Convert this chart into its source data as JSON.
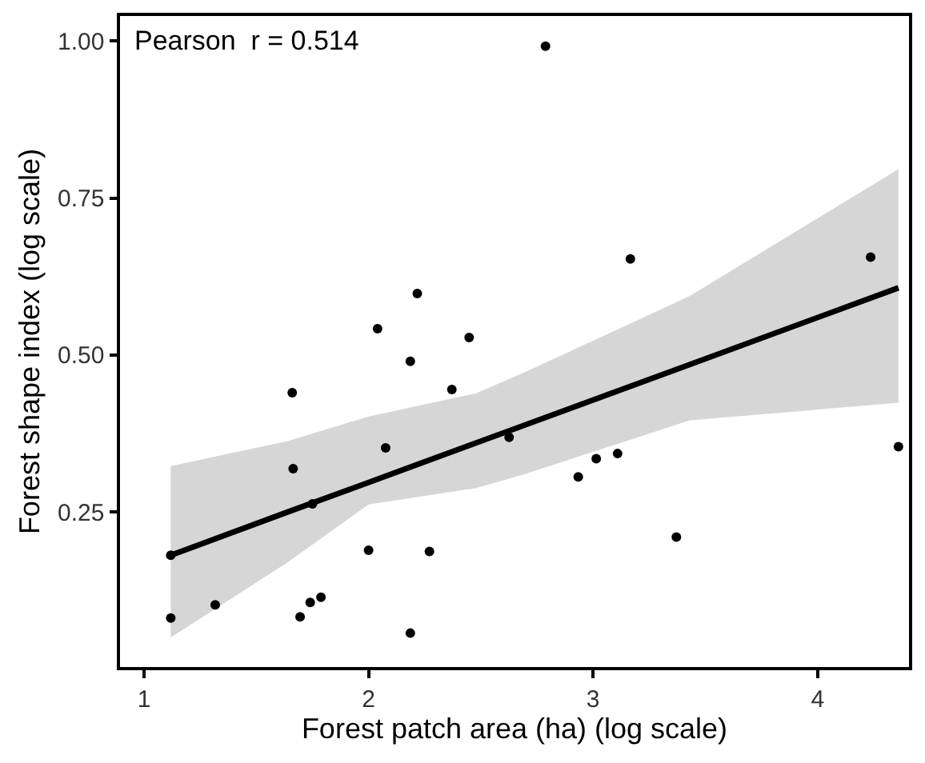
{
  "chart_data": {
    "type": "scatter",
    "xlabel": "Forest patch area (ha) (log scale)",
    "ylabel": "Forest shape index (log scale)",
    "annotations": [
      "Pearson  r = 0.514"
    ],
    "xlim": [
      0.893,
      4.407
    ],
    "ylim": [
      0.003,
      1.04
    ],
    "xticks": [
      1,
      2,
      3,
      4
    ],
    "yticks": [
      {
        "value": 0.25,
        "label": "0.25"
      },
      {
        "value": 0.5,
        "label": "0.50"
      },
      {
        "value": 0.75,
        "label": "0.75"
      },
      {
        "value": 1.0,
        "label": "1.00"
      }
    ],
    "marker": "circle",
    "series": [
      {
        "type": "line",
        "marker": "none",
        "color": "#000000",
        "x": [
          1.119,
          1.64,
          2.0,
          2.479,
          2.693,
          3.431,
          4.36
        ],
        "values": [
          0.181,
          0.25,
          0.297,
          0.36,
          0.388,
          0.485,
          0.607
        ],
        "lower": [
          0.05,
          0.17,
          0.262,
          0.288,
          0.31,
          0.396,
          0.424
        ],
        "upper": [
          0.323,
          0.363,
          0.402,
          0.439,
          0.472,
          0.594,
          0.796
        ]
      },
      {
        "color": "#000000",
        "x": [
          2.217,
          2.04,
          2.448,
          2.186,
          2.371,
          1.66,
          2.626,
          2.076,
          1.664,
          1.75,
          1.119,
          2.0,
          2.271,
          1.119,
          1.317,
          1.695,
          1.74,
          1.788,
          2.186,
          2.788,
          3.166,
          4.236,
          2.934,
          3.014,
          3.109,
          3.371,
          4.36
        ],
        "values": [
          0.598,
          0.542,
          0.528,
          0.49,
          0.445,
          0.44,
          0.369,
          0.352,
          0.319,
          0.263,
          0.181,
          0.189,
          0.187,
          0.081,
          0.102,
          0.083,
          0.106,
          0.114,
          0.057,
          0.992,
          0.653,
          0.656,
          0.306,
          0.335,
          0.343,
          0.21,
          0.354
        ]
      }
    ]
  }
}
